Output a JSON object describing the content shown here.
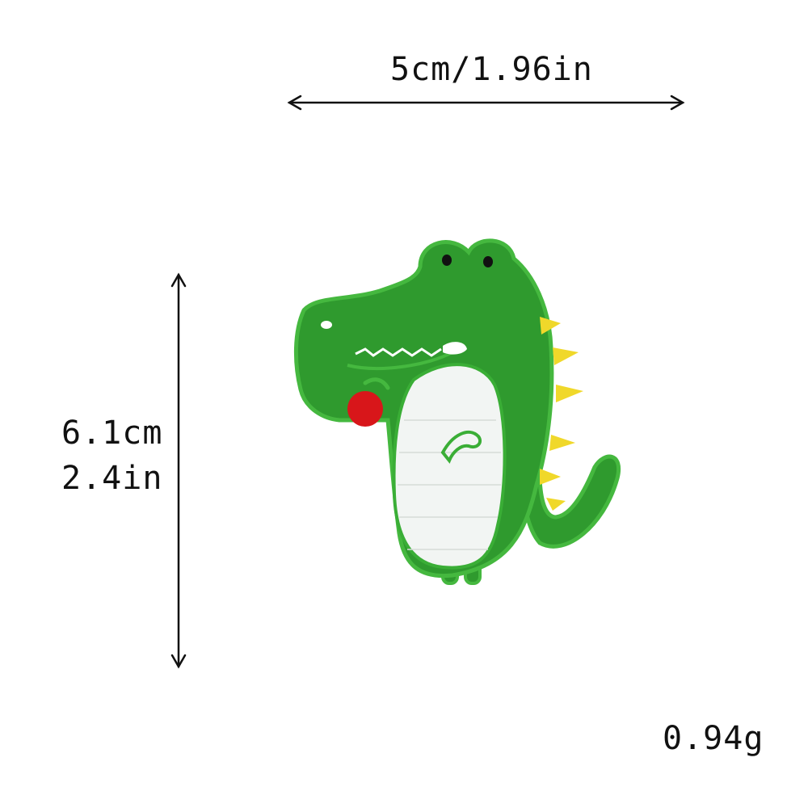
{
  "dimensions": {
    "width_label": "5cm/1.96in",
    "height_label_cm": "6.1cm",
    "height_label_in": "2.4in",
    "weight_label": "0.94g"
  },
  "product": {
    "illustration": "green crocodile embroidered iron-on patch holding a red apple",
    "colors": {
      "body_green": "#2f9a2e",
      "outline_green": "#3fb33b",
      "belly_white": "#f2f5f3",
      "apple_red": "#d8161a",
      "spikes_yellow": "#f0d82a",
      "eye_black": "#111111"
    }
  }
}
